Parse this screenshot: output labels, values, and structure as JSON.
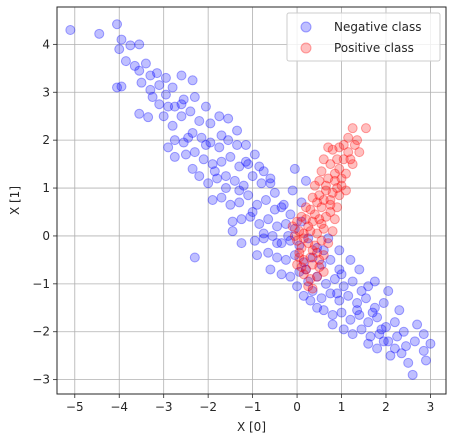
{
  "chart_data": {
    "type": "scatter",
    "xlabel": "X [0]",
    "ylabel": "X [1]",
    "xlim": [
      -5.4,
      3.35
    ],
    "ylim": [
      -3.3,
      4.78
    ],
    "xticks": [
      -5,
      -4,
      -3,
      -2,
      -1,
      0,
      1,
      2,
      3
    ],
    "yticks": [
      -3,
      -2,
      -1,
      0,
      1,
      2,
      3,
      4
    ],
    "grid": true,
    "legend": "top-right",
    "series": [
      {
        "name": "Negative class",
        "color": "#0000ff",
        "alpha": 0.25,
        "points": [
          [
            -5.1,
            4.3
          ],
          [
            -4.45,
            4.22
          ],
          [
            -4.05,
            4.42
          ],
          [
            -3.95,
            4.1
          ],
          [
            -4.0,
            3.9
          ],
          [
            -3.75,
            3.98
          ],
          [
            -3.55,
            4.0
          ],
          [
            -3.85,
            3.65
          ],
          [
            -3.65,
            3.55
          ],
          [
            -3.4,
            3.6
          ],
          [
            -3.95,
            3.12
          ],
          [
            -4.05,
            3.1
          ],
          [
            -3.55,
            3.45
          ],
          [
            -3.3,
            3.35
          ],
          [
            -3.15,
            3.4
          ],
          [
            -3.5,
            3.2
          ],
          [
            -3.3,
            3.05
          ],
          [
            -3.1,
            3.15
          ],
          [
            -2.95,
            3.3
          ],
          [
            -2.8,
            3.1
          ],
          [
            -2.6,
            3.35
          ],
          [
            -2.35,
            3.25
          ],
          [
            -3.55,
            2.55
          ],
          [
            -3.35,
            2.48
          ],
          [
            -3.1,
            2.75
          ],
          [
            -2.95,
            2.95
          ],
          [
            -2.75,
            2.7
          ],
          [
            -2.55,
            2.85
          ],
          [
            -2.3,
            2.9
          ],
          [
            -2.05,
            2.7
          ],
          [
            -3.0,
            2.5
          ],
          [
            -2.8,
            2.3
          ],
          [
            -2.6,
            2.5
          ],
          [
            -2.4,
            2.6
          ],
          [
            -2.2,
            2.4
          ],
          [
            -1.95,
            2.35
          ],
          [
            -1.75,
            2.5
          ],
          [
            -1.55,
            2.45
          ],
          [
            -1.35,
            1.9
          ],
          [
            -2.75,
            2.0
          ],
          [
            -2.55,
            1.95
          ],
          [
            -2.35,
            2.15
          ],
          [
            -2.15,
            2.05
          ],
          [
            -1.95,
            1.95
          ],
          [
            -1.75,
            1.85
          ],
          [
            -1.55,
            2.0
          ],
          [
            -1.35,
            2.2
          ],
          [
            -1.15,
            1.9
          ],
          [
            -2.5,
            1.7
          ],
          [
            -2.3,
            1.75
          ],
          [
            -2.1,
            1.6
          ],
          [
            -1.9,
            1.5
          ],
          [
            -1.7,
            1.55
          ],
          [
            -1.5,
            1.65
          ],
          [
            -1.3,
            1.45
          ],
          [
            -1.1,
            1.5
          ],
          [
            -0.95,
            1.7
          ],
          [
            -0.75,
            1.35
          ],
          [
            -2.75,
            1.65
          ],
          [
            -2.9,
            1.85
          ],
          [
            -2.2,
            1.25
          ],
          [
            -2.0,
            1.1
          ],
          [
            -1.8,
            1.2
          ],
          [
            -1.6,
            1.0
          ],
          [
            -1.4,
            1.15
          ],
          [
            -1.2,
            1.05
          ],
          [
            -1.0,
            1.25
          ],
          [
            -0.8,
            1.1
          ],
          [
            -0.6,
            1.2
          ],
          [
            -0.5,
            0.9
          ],
          [
            -1.9,
            0.75
          ],
          [
            -1.7,
            0.8
          ],
          [
            -1.5,
            0.65
          ],
          [
            -1.3,
            0.7
          ],
          [
            -1.1,
            0.85
          ],
          [
            -0.9,
            0.65
          ],
          [
            -0.7,
            0.75
          ],
          [
            -0.5,
            0.55
          ],
          [
            -0.3,
            0.65
          ],
          [
            -0.15,
            0.45
          ],
          [
            -1.45,
            0.3
          ],
          [
            -1.25,
            0.35
          ],
          [
            -1.05,
            0.4
          ],
          [
            -0.85,
            0.25
          ],
          [
            -0.65,
            0.35
          ],
          [
            -0.45,
            0.2
          ],
          [
            -0.25,
            0.25
          ],
          [
            -0.05,
            0.15
          ],
          [
            0.1,
            0.3
          ],
          [
            -0.95,
            -0.1
          ],
          [
            -0.75,
            -0.05
          ],
          [
            -0.55,
            0.0
          ],
          [
            -0.35,
            -0.15
          ],
          [
            -0.15,
            -0.1
          ],
          [
            0.05,
            -0.2
          ],
          [
            0.25,
            -0.05
          ],
          [
            0.45,
            -0.25
          ],
          [
            -0.65,
            -0.35
          ],
          [
            -0.45,
            -0.45
          ],
          [
            -0.25,
            -0.5
          ],
          [
            -0.05,
            -0.4
          ],
          [
            0.15,
            -0.55
          ],
          [
            0.35,
            -0.45
          ],
          [
            0.55,
            -0.6
          ],
          [
            0.75,
            -0.5
          ],
          [
            0.95,
            -0.7
          ],
          [
            -0.35,
            -0.8
          ],
          [
            -0.15,
            -0.85
          ],
          [
            0.05,
            -0.75
          ],
          [
            0.25,
            -0.95
          ],
          [
            0.45,
            -0.85
          ],
          [
            0.65,
            -1.0
          ],
          [
            0.85,
            -0.9
          ],
          [
            1.05,
            -1.05
          ],
          [
            1.25,
            -0.95
          ],
          [
            1.45,
            -1.15
          ],
          [
            0.15,
            -1.25
          ],
          [
            0.35,
            -1.15
          ],
          [
            0.55,
            -1.3
          ],
          [
            0.75,
            -1.2
          ],
          [
            0.95,
            -1.35
          ],
          [
            1.15,
            -1.25
          ],
          [
            1.35,
            -1.4
          ],
          [
            1.55,
            -1.3
          ],
          [
            1.75,
            -1.5
          ],
          [
            1.95,
            -1.4
          ],
          [
            0.6,
            -1.55
          ],
          [
            0.8,
            -1.65
          ],
          [
            1.0,
            -1.6
          ],
          [
            1.2,
            -1.75
          ],
          [
            1.4,
            -1.65
          ],
          [
            1.6,
            -1.8
          ],
          [
            1.8,
            -1.7
          ],
          [
            2.0,
            -1.9
          ],
          [
            2.2,
            -1.8
          ],
          [
            2.4,
            -2.0
          ],
          [
            1.05,
            -1.95
          ],
          [
            1.25,
            -2.05
          ],
          [
            1.45,
            -1.95
          ],
          [
            1.65,
            -2.1
          ],
          [
            1.85,
            -2.05
          ],
          [
            2.05,
            -2.2
          ],
          [
            2.25,
            -2.1
          ],
          [
            2.45,
            -2.3
          ],
          [
            2.65,
            -2.2
          ],
          [
            2.85,
            -2.05
          ],
          [
            1.6,
            -2.25
          ],
          [
            1.8,
            -2.35
          ],
          [
            2.1,
            -2.5
          ],
          [
            2.5,
            -2.65
          ],
          [
            2.6,
            -2.9
          ],
          [
            2.85,
            -2.4
          ],
          [
            3.0,
            -2.25
          ],
          [
            2.2,
            -2.35
          ],
          [
            1.9,
            -1.95
          ],
          [
            2.7,
            -1.85
          ],
          [
            -2.3,
            -0.45
          ],
          [
            -1.25,
            -0.15
          ],
          [
            -0.9,
            -0.4
          ],
          [
            -0.6,
            -0.7
          ],
          [
            0.0,
            -1.05
          ],
          [
            0.3,
            -1.35
          ],
          [
            1.4,
            -0.7
          ],
          [
            1.75,
            -0.95
          ],
          [
            2.05,
            -1.15
          ],
          [
            1.6,
            -1.05
          ],
          [
            -0.35,
            0.6
          ],
          [
            -0.6,
            1.1
          ],
          [
            -0.85,
            1.45
          ],
          [
            -1.15,
            1.55
          ],
          [
            -2.6,
            2.75
          ],
          [
            -2.45,
            2.05
          ],
          [
            -2.9,
            2.7
          ],
          [
            -3.25,
            2.9
          ],
          [
            -1.6,
            1.25
          ],
          [
            -1.0,
            0.5
          ],
          [
            -0.2,
            0.0
          ],
          [
            0.6,
            -0.3
          ],
          [
            1.0,
            -0.8
          ],
          [
            1.7,
            -1.6
          ],
          [
            2.3,
            -1.55
          ],
          [
            -2.05,
            1.9
          ],
          [
            -1.85,
            1.35
          ],
          [
            -1.3,
            0.95
          ],
          [
            -0.45,
            -0.15
          ],
          [
            0.2,
            -0.7
          ],
          [
            0.9,
            -1.2
          ],
          [
            1.35,
            -1.55
          ],
          [
            1.95,
            -2.2
          ],
          [
            2.35,
            -2.45
          ],
          [
            -0.1,
            0.95
          ],
          [
            0.1,
            0.7
          ],
          [
            0.2,
            1.15
          ],
          [
            -0.05,
            1.4
          ],
          [
            0.7,
            -0.05
          ],
          [
            0.95,
            -0.3
          ],
          [
            1.2,
            -0.5
          ],
          [
            -1.7,
            2.1
          ],
          [
            -2.35,
            1.4
          ],
          [
            -1.45,
            0.1
          ],
          [
            -0.75,
            0.05
          ],
          [
            0.45,
            -1.5
          ],
          [
            0.8,
            -1.85
          ],
          [
            2.9,
            -2.6
          ]
        ]
      },
      {
        "name": "Positive class",
        "color": "#ff0000",
        "alpha": 0.25,
        "points": [
          [
            1.25,
            2.25
          ],
          [
            1.55,
            2.25
          ],
          [
            1.15,
            2.05
          ],
          [
            1.3,
            1.9
          ],
          [
            1.4,
            1.75
          ],
          [
            1.05,
            1.9
          ],
          [
            0.95,
            1.85
          ],
          [
            0.8,
            1.8
          ],
          [
            0.7,
            1.85
          ],
          [
            1.2,
            1.6
          ],
          [
            0.9,
            1.6
          ],
          [
            0.75,
            1.5
          ],
          [
            0.6,
            1.6
          ],
          [
            1.1,
            1.3
          ],
          [
            0.95,
            1.4
          ],
          [
            0.55,
            1.35
          ],
          [
            1.0,
            1.05
          ],
          [
            0.85,
            1.15
          ],
          [
            0.7,
            1.2
          ],
          [
            0.5,
            1.15
          ],
          [
            0.4,
            1.05
          ],
          [
            0.95,
            0.85
          ],
          [
            0.8,
            0.9
          ],
          [
            0.65,
            0.95
          ],
          [
            0.5,
            0.85
          ],
          [
            0.35,
            0.8
          ],
          [
            0.9,
            0.6
          ],
          [
            0.75,
            0.65
          ],
          [
            0.55,
            0.6
          ],
          [
            0.45,
            0.7
          ],
          [
            0.3,
            0.55
          ],
          [
            0.2,
            0.6
          ],
          [
            0.85,
            0.35
          ],
          [
            0.65,
            0.4
          ],
          [
            0.5,
            0.35
          ],
          [
            0.35,
            0.3
          ],
          [
            0.2,
            0.35
          ],
          [
            0.1,
            0.4
          ],
          [
            0.0,
            0.3
          ],
          [
            0.8,
            0.1
          ],
          [
            0.6,
            0.15
          ],
          [
            0.45,
            0.05
          ],
          [
            0.3,
            0.1
          ],
          [
            0.15,
            0.05
          ],
          [
            0.05,
            0.1
          ],
          [
            -0.1,
            0.2
          ],
          [
            0.7,
            -0.15
          ],
          [
            0.55,
            -0.1
          ],
          [
            0.4,
            -0.2
          ],
          [
            0.25,
            -0.15
          ],
          [
            0.1,
            -0.25
          ],
          [
            0.0,
            -0.1
          ],
          [
            0.6,
            -0.4
          ],
          [
            0.45,
            -0.35
          ],
          [
            0.3,
            -0.45
          ],
          [
            0.15,
            -0.5
          ],
          [
            0.05,
            -0.35
          ],
          [
            0.5,
            -0.65
          ],
          [
            0.35,
            -0.6
          ],
          [
            0.2,
            -0.7
          ],
          [
            0.1,
            -0.65
          ],
          [
            0.0,
            -0.6
          ],
          [
            0.45,
            -0.85
          ],
          [
            0.3,
            -0.9
          ],
          [
            0.15,
            -0.8
          ],
          [
            0.25,
            -1.05
          ],
          [
            0.6,
            -0.75
          ],
          [
            0.35,
            -1.1
          ],
          [
            1.35,
            2.0
          ],
          [
            1.15,
            1.75
          ],
          [
            1.05,
            1.6
          ],
          [
            0.65,
            1.05
          ],
          [
            0.4,
            0.45
          ],
          [
            0.25,
            0.2
          ],
          [
            0.55,
            0.25
          ],
          [
            0.75,
            0.75
          ],
          [
            1.0,
            1.2
          ],
          [
            1.25,
            1.5
          ],
          [
            0.15,
            -0.05
          ],
          [
            0.35,
            -0.3
          ],
          [
            0.9,
            1.0
          ],
          [
            0.6,
            0.75
          ],
          [
            0.05,
            -0.45
          ],
          [
            -0.05,
            0.0
          ],
          [
            0.75,
            0.5
          ],
          [
            0.5,
            -0.5
          ],
          [
            1.1,
            0.95
          ],
          [
            0.85,
            1.3
          ]
        ]
      }
    ]
  }
}
